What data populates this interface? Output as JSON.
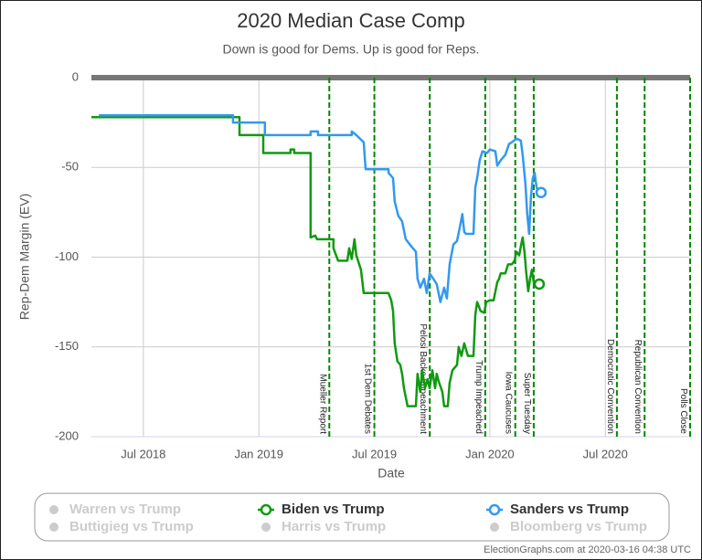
{
  "chart_data": {
    "type": "line",
    "title": "2020 Median Case Comp",
    "subtitle": "Down is good for Dems. Up is good for Reps.",
    "x_label": "Date",
    "y_label": "Rep-Dem Margin (EV)",
    "footer": "ElectionGraphs.com at 2020-03-16 04:38 UTC",
    "xlim": [
      2018.275,
      2020.867
    ],
    "ylim": [
      -200,
      0
    ],
    "xticks": [
      {
        "value": 2018.5,
        "label": "Jul 2018"
      },
      {
        "value": 2019.0,
        "label": "Jan 2019"
      },
      {
        "value": 2019.5,
        "label": "Jul 2019"
      },
      {
        "value": 2020.0,
        "label": "Jan 2020"
      },
      {
        "value": 2020.5,
        "label": "Jul 2020"
      }
    ],
    "yticks": [
      0,
      -50,
      -100,
      -150,
      -200
    ],
    "grid": true,
    "zero_line": true,
    "events": [
      {
        "x": 2019.305,
        "label": "Mueller Report"
      },
      {
        "x": 2019.5,
        "label": "1st Dem Debates"
      },
      {
        "x": 2019.74,
        "label": "Pelosi Backs Impeachment"
      },
      {
        "x": 2019.98,
        "label": "Trump Impeached"
      },
      {
        "x": 2020.11,
        "label": "Iowa Caucuses"
      },
      {
        "x": 2020.19,
        "label": "Super Tuesday"
      },
      {
        "x": 2020.55,
        "label": "Democratic Convention"
      },
      {
        "x": 2020.67,
        "label": "Republican Convention"
      },
      {
        "x": 2020.867,
        "label": "Polls Close"
      }
    ],
    "event_color": "#008800",
    "series": [
      {
        "name": "Warren vs Trump",
        "color": "#cccccc",
        "visible": false
      },
      {
        "name": "Biden vs Trump",
        "color": "#119911",
        "visible": true,
        "x": [
          2018.275,
          2018.916,
          2018.916,
          2019.019,
          2019.019,
          2019.137,
          2019.137,
          2019.153,
          2019.153,
          2019.224,
          2019.224,
          2019.244,
          2019.252,
          2019.323,
          2019.323,
          2019.343,
          2019.383,
          2019.391,
          2019.402,
          2019.414,
          2019.422,
          2019.442,
          2019.454,
          2019.561,
          2019.573,
          2019.581,
          2019.588,
          2019.6,
          2019.612,
          2019.62,
          2019.628,
          2019.644,
          2019.68,
          2019.687,
          2019.699,
          2019.707,
          2019.719,
          2019.731,
          2019.739,
          2019.751,
          2019.763,
          2019.77,
          2019.778,
          2019.794,
          2019.802,
          2019.818,
          2019.826,
          2019.838,
          2019.858,
          2019.865,
          2019.877,
          2019.889,
          2019.905,
          2019.929,
          2019.937,
          2019.945,
          2019.96,
          2019.976,
          2019.984,
          2020.0,
          2020.016,
          2020.032,
          2020.04,
          2020.047,
          2020.067,
          2020.079,
          2020.095,
          2020.107,
          2020.115,
          2020.127,
          2020.134,
          2020.142,
          2020.15,
          2020.158,
          2020.166,
          2020.174,
          2020.182,
          2020.19,
          2020.202
        ],
        "values": [
          -22,
          -22,
          -32,
          -32,
          -42,
          -42,
          -40,
          -40,
          -42,
          -42,
          -89,
          -88,
          -90,
          -90,
          -95,
          -102,
          -102,
          -95,
          -101,
          -90,
          -99,
          -107,
          -120,
          -120,
          -124,
          -130,
          -148,
          -158,
          -160,
          -165,
          -173,
          -183,
          -183,
          -165,
          -175,
          -163,
          -173,
          -168,
          -173,
          -163,
          -173,
          -165,
          -169,
          -175,
          -183,
          -183,
          -170,
          -163,
          -160,
          -150,
          -155,
          -148,
          -155,
          -155,
          -132,
          -125,
          -130,
          -131,
          -125,
          -124,
          -124,
          -114,
          -112,
          -109,
          -109,
          -104,
          -104,
          -102,
          -97,
          -99,
          -94,
          -89,
          -97,
          -109,
          -119,
          -112,
          -107,
          -114,
          -115
        ]
      },
      {
        "name": "Sanders vs Trump",
        "color": "#3399ee",
        "visible": true,
        "x": [
          2018.307,
          2018.888,
          2018.888,
          2019.026,
          2019.026,
          2019.224,
          2019.224,
          2019.256,
          2019.256,
          2019.402,
          2019.402,
          2019.422,
          2019.454,
          2019.462,
          2019.561,
          2019.561,
          2019.581,
          2019.588,
          2019.604,
          2019.62,
          2019.636,
          2019.66,
          2019.68,
          2019.687,
          2019.699,
          2019.715,
          2019.727,
          2019.739,
          2019.755,
          2019.77,
          2019.786,
          2019.802,
          2019.814,
          2019.826,
          2019.842,
          2019.858,
          2019.869,
          2019.881,
          2019.889,
          2019.897,
          2019.929,
          2019.937,
          2019.945,
          2019.956,
          2019.968,
          2019.988,
          2020.0,
          2020.024,
          2020.032,
          2020.047,
          2020.067,
          2020.083,
          2020.095,
          2020.115,
          2020.134,
          2020.142,
          2020.154,
          2020.162,
          2020.17,
          2020.178,
          2020.186,
          2020.194,
          2020.202,
          2020.21
        ],
        "values": [
          -21,
          -21,
          -25,
          -25,
          -32,
          -32,
          -30,
          -30,
          -32,
          -32,
          -30,
          -32,
          -36,
          -51,
          -51,
          -53,
          -56,
          -69,
          -77,
          -80,
          -90,
          -94,
          -97,
          -112,
          -117,
          -112,
          -120,
          -109,
          -112,
          -115,
          -125,
          -117,
          -123,
          -104,
          -93,
          -91,
          -84,
          -76,
          -86,
          -87,
          -87,
          -61,
          -56,
          -46,
          -41,
          -42,
          -40,
          -41,
          -49,
          -46,
          -43,
          -37,
          -36,
          -34,
          -35,
          -43,
          -59,
          -76,
          -87,
          -66,
          -56,
          -53,
          -61,
          -64
        ]
      },
      {
        "name": "Buttigieg vs Trump",
        "color": "#cccccc",
        "visible": false
      },
      {
        "name": "Harris vs Trump",
        "color": "#cccccc",
        "visible": false
      },
      {
        "name": "Bloomberg vs Trump",
        "color": "#cccccc",
        "visible": false
      }
    ]
  }
}
